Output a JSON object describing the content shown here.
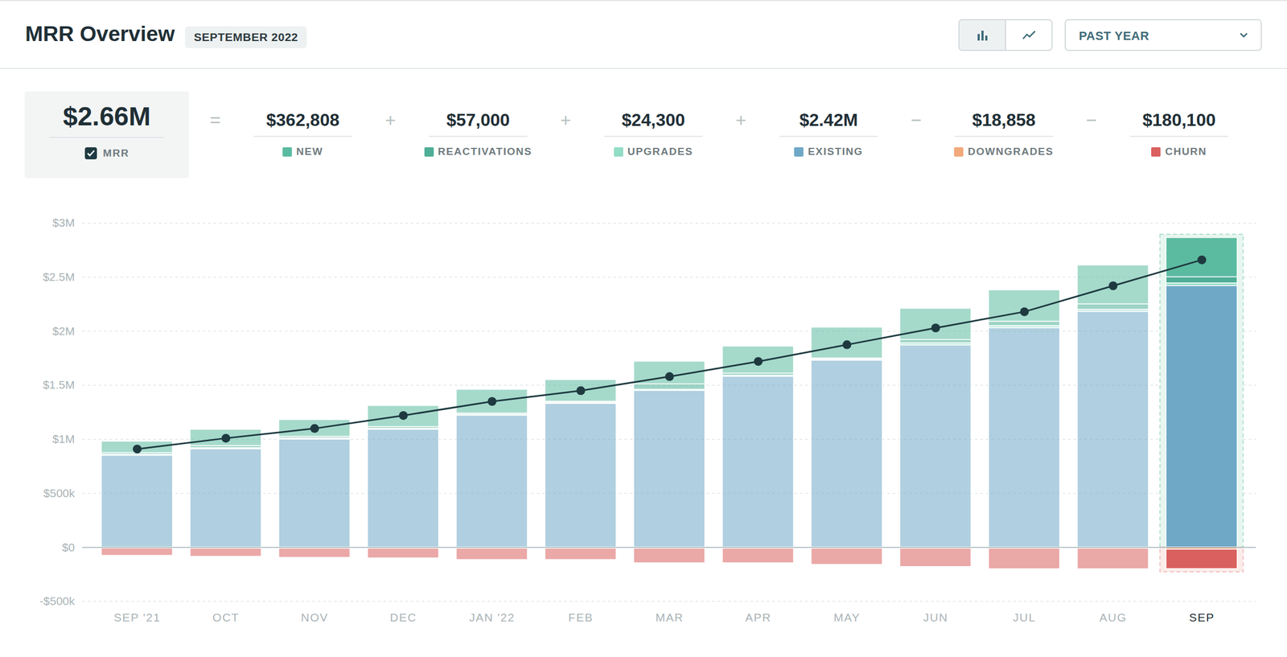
{
  "header": {
    "title": "MRR Overview",
    "period": "SEPTEMBER 2022",
    "range_select": "PAST YEAR"
  },
  "summary": {
    "total": {
      "value": 2660000,
      "value_label": "$2.66M",
      "label": "MRR",
      "checked": true
    },
    "items": [
      {
        "operator": "=",
        "value": 362808,
        "value_label": "$362,808",
        "label": "NEW",
        "color": "#5bbba0"
      },
      {
        "operator": "+",
        "value": 57000,
        "value_label": "$57,000",
        "label": "REACTIVATIONS",
        "color": "#4fae96"
      },
      {
        "operator": "+",
        "value": 24300,
        "value_label": "$24,300",
        "label": "UPGRADES",
        "color": "#93dcc5"
      },
      {
        "operator": "+",
        "value": 2420000,
        "value_label": "$2.42M",
        "label": "EXISTING",
        "color": "#6fa8c7"
      },
      {
        "operator": "−",
        "value": 18858,
        "value_label": "$18,858",
        "label": "DOWNGRADES",
        "color": "#f2a97c"
      },
      {
        "operator": "−",
        "value": 180100,
        "value_label": "$180,100",
        "label": "CHURN",
        "color": "#d9605e"
      }
    ]
  },
  "chart_data": {
    "type": "bar",
    "stacked": true,
    "grid": true,
    "categories": [
      "SEP '21",
      "OCT",
      "NOV",
      "DEC",
      "JAN '22",
      "FEB",
      "MAR",
      "APR",
      "MAY",
      "JUN",
      "JUL",
      "AUG",
      "SEP"
    ],
    "ylim": [
      -500000,
      3000000
    ],
    "yticks": [
      {
        "value": -500000,
        "label": "-$500k"
      },
      {
        "value": 0,
        "label": "$0"
      },
      {
        "value": 500000,
        "label": "$500k"
      },
      {
        "value": 1000000,
        "label": "$1M"
      },
      {
        "value": 1500000,
        "label": "$1.5M"
      },
      {
        "value": 2000000,
        "label": "$2M"
      },
      {
        "value": 2500000,
        "label": "$2.5M"
      },
      {
        "value": 3000000,
        "label": "$3M"
      }
    ],
    "series": [
      {
        "name": "EXISTING",
        "type": "bar",
        "color": "#6fa8c7",
        "values": [
          850000,
          910000,
          1000000,
          1090000,
          1220000,
          1330000,
          1450000,
          1580000,
          1730000,
          1870000,
          2030000,
          2180000,
          2420000
        ]
      },
      {
        "name": "UPGRADES",
        "type": "bar",
        "color": "#93dcc5",
        "values": [
          10000,
          10000,
          10000,
          10000,
          10000,
          10000,
          10000,
          10000,
          10000,
          20000,
          20000,
          20000,
          24300
        ]
      },
      {
        "name": "REACTIVATIONS",
        "type": "bar",
        "color": "#4fae96",
        "values": [
          15000,
          20000,
          15000,
          15000,
          10000,
          10000,
          50000,
          20000,
          10000,
          30000,
          40000,
          50000,
          57000
        ]
      },
      {
        "name": "NEW",
        "type": "bar",
        "color": "#5bbba0",
        "values": [
          105000,
          150000,
          155000,
          195000,
          220000,
          200000,
          210000,
          250000,
          285000,
          290000,
          290000,
          360000,
          362808
        ]
      },
      {
        "name": "DOWNGRADES",
        "type": "bar",
        "color": "#f2a97c",
        "values": [
          -8000,
          -10000,
          -10000,
          -10000,
          -10000,
          -10000,
          -10000,
          -10000,
          -10000,
          -10000,
          -10000,
          -10000,
          -18858
        ]
      },
      {
        "name": "CHURN",
        "type": "bar",
        "color": "#d9605e",
        "values": [
          -68000,
          -75000,
          -85000,
          -90000,
          -105000,
          -105000,
          -135000,
          -135000,
          -150000,
          -170000,
          -190000,
          -190000,
          -180100
        ]
      },
      {
        "name": "MRR",
        "type": "line",
        "color": "#1e3a40",
        "marker": "circle",
        "values": [
          910000,
          1010000,
          1100000,
          1220000,
          1350000,
          1450000,
          1580000,
          1720000,
          1875000,
          2030000,
          2180000,
          2420000,
          2660000
        ]
      }
    ]
  }
}
